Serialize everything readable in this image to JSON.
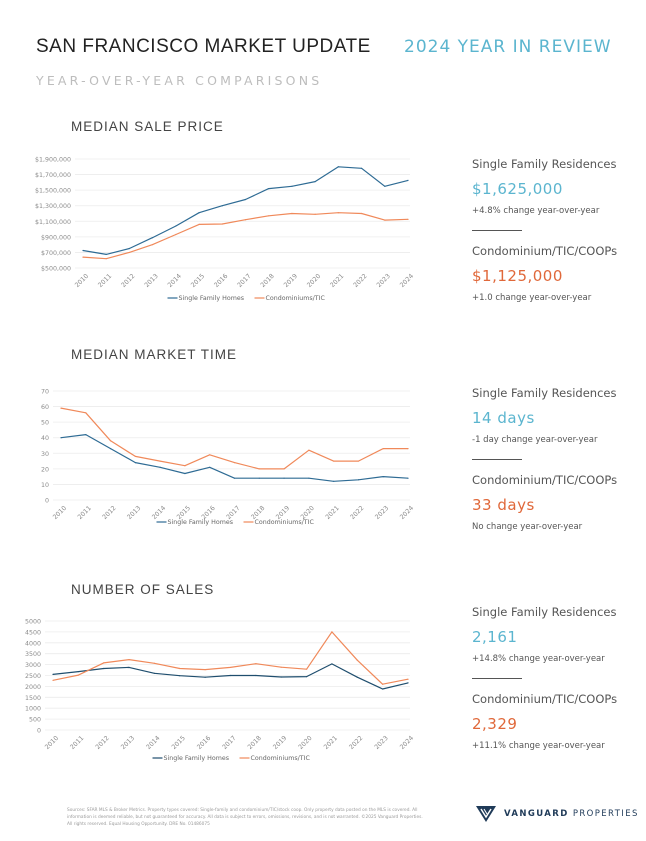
{
  "header": {
    "title": "SAN FRANCISCO MARKET UPDATE",
    "subtitle": "2024 YEAR IN REVIEW",
    "tagline": "YEAR-OVER-YEAR COMPARISONS"
  },
  "colors": {
    "single_family": "#2e6b94",
    "condo": "#f0895a",
    "accent_blue": "#5bb5cf",
    "accent_orange": "#e0683a",
    "sales_single_family": "#1f4e6e"
  },
  "sections": [
    {
      "title": "MEDIAN SALE PRICE",
      "sfr_label": "Single Family Residences",
      "sfr_value": "$1,625,000",
      "sfr_change": "+4.8% change year-over-year",
      "condo_label": "Condominium/TIC/COOPs",
      "condo_value": "$1,125,000",
      "condo_change": "+1.0 change year-over-year"
    },
    {
      "title": "MEDIAN MARKET TIME",
      "sfr_label": "Single Family Residences",
      "sfr_value": "14 days",
      "sfr_change": "-1 day change year-over-year",
      "condo_label": "Condominium/TIC/COOPs",
      "condo_value": "33 days",
      "condo_change": "No change year-over-year"
    },
    {
      "title": "NUMBER OF SALES",
      "sfr_label": "Single Family Residences",
      "sfr_value": "2,161",
      "sfr_change": "+14.8% change year-over-year",
      "condo_label": "Condominium/TIC/COOPs",
      "condo_value": "2,329",
      "condo_change": "+11.1% change year-over-year"
    }
  ],
  "chart_data": [
    {
      "type": "line",
      "title": "MEDIAN SALE PRICE",
      "x": [
        "2010",
        "2011",
        "2012",
        "2013",
        "2014",
        "2015",
        "2016",
        "2017",
        "2018",
        "2019",
        "2020",
        "2021",
        "2022",
        "2023",
        "2024"
      ],
      "ylim": [
        500000,
        1900000
      ],
      "yticks": [
        500000,
        700000,
        900000,
        1100000,
        1300000,
        1500000,
        1700000,
        1900000
      ],
      "ytick_labels": [
        "$500,000",
        "$700,000",
        "$900,000",
        "$1,100,000",
        "$1,300,000",
        "$1,500,000",
        "$1,700,000",
        "$1,900,000"
      ],
      "grid": true,
      "legend": "bottom",
      "series": [
        {
          "name": "Single Family Homes",
          "values": [
            725000,
            675000,
            750000,
            890000,
            1040000,
            1210000,
            1300000,
            1380000,
            1520000,
            1550000,
            1610000,
            1800000,
            1780000,
            1550000,
            1625000
          ]
        },
        {
          "name": "Condominiums/TIC",
          "values": [
            640000,
            620000,
            700000,
            800000,
            930000,
            1060000,
            1065000,
            1120000,
            1170000,
            1200000,
            1190000,
            1210000,
            1200000,
            1115000,
            1125000
          ]
        }
      ]
    },
    {
      "type": "line",
      "title": "MEDIAN MARKET TIME",
      "x": [
        "2010",
        "2011",
        "2012",
        "2013",
        "2014",
        "2015",
        "2016",
        "2017",
        "2018",
        "2019",
        "2020",
        "2021",
        "2022",
        "2023",
        "2024"
      ],
      "ylim": [
        0,
        70
      ],
      "yticks": [
        0,
        10,
        20,
        30,
        40,
        50,
        60,
        70
      ],
      "ytick_labels": [
        "0",
        "10",
        "20",
        "30",
        "40",
        "50",
        "60",
        "70"
      ],
      "grid": true,
      "legend": "bottom",
      "series": [
        {
          "name": "Single Family Homes",
          "values": [
            40,
            42,
            33,
            24,
            21,
            17,
            21,
            14,
            14,
            14,
            14,
            12,
            13,
            15,
            14
          ]
        },
        {
          "name": "Condominiums/TIC",
          "values": [
            59,
            56,
            38,
            28,
            25,
            22,
            29,
            24,
            20,
            20,
            32,
            25,
            25,
            33,
            33
          ]
        }
      ]
    },
    {
      "type": "line",
      "title": "NUMBER OF SALES",
      "x": [
        "2010",
        "2011",
        "2012",
        "2013",
        "2014",
        "2015",
        "2016",
        "2017",
        "2018",
        "2019",
        "2020",
        "2021",
        "2022",
        "2023",
        "2024"
      ],
      "ylim": [
        0,
        5000
      ],
      "yticks": [
        0,
        500,
        1000,
        1500,
        2000,
        2500,
        3000,
        3500,
        4000,
        4500,
        5000
      ],
      "ytick_labels": [
        "0",
        "500",
        "1000",
        "1500",
        "2000",
        "2500",
        "3000",
        "3500",
        "4000",
        "4500",
        "5000"
      ],
      "grid": true,
      "legend": "bottom",
      "series": [
        {
          "name": "Single Family Homes",
          "values": [
            2550,
            2680,
            2820,
            2870,
            2600,
            2490,
            2420,
            2500,
            2500,
            2430,
            2450,
            3030,
            2420,
            1880,
            2161
          ]
        },
        {
          "name": "Condominiums/TIC",
          "values": [
            2280,
            2520,
            3080,
            3230,
            3060,
            2820,
            2770,
            2870,
            3040,
            2880,
            2790,
            4500,
            3200,
            2100,
            2329
          ]
        }
      ]
    }
  ],
  "footer": {
    "disclaimer": "Sources: SFAR MLS & Broker Metrics. Property types covered: Single-family and condominium/TIC/stock coop. Only property data posted on the MLS is covered. All information is deemed reliable, but not guaranteed for accuracy. All data is subject to errors, omissions, revisions, and is not warranted. ©2025 Vanguard Properties. All rights reserved. Equal Housing Opportunity. DRE No. 01486075"
  },
  "brand": {
    "name_bold": "VANGUARD",
    "name_light": "PROPERTIES",
    "logo_icon": "vanguard-v-logo"
  }
}
